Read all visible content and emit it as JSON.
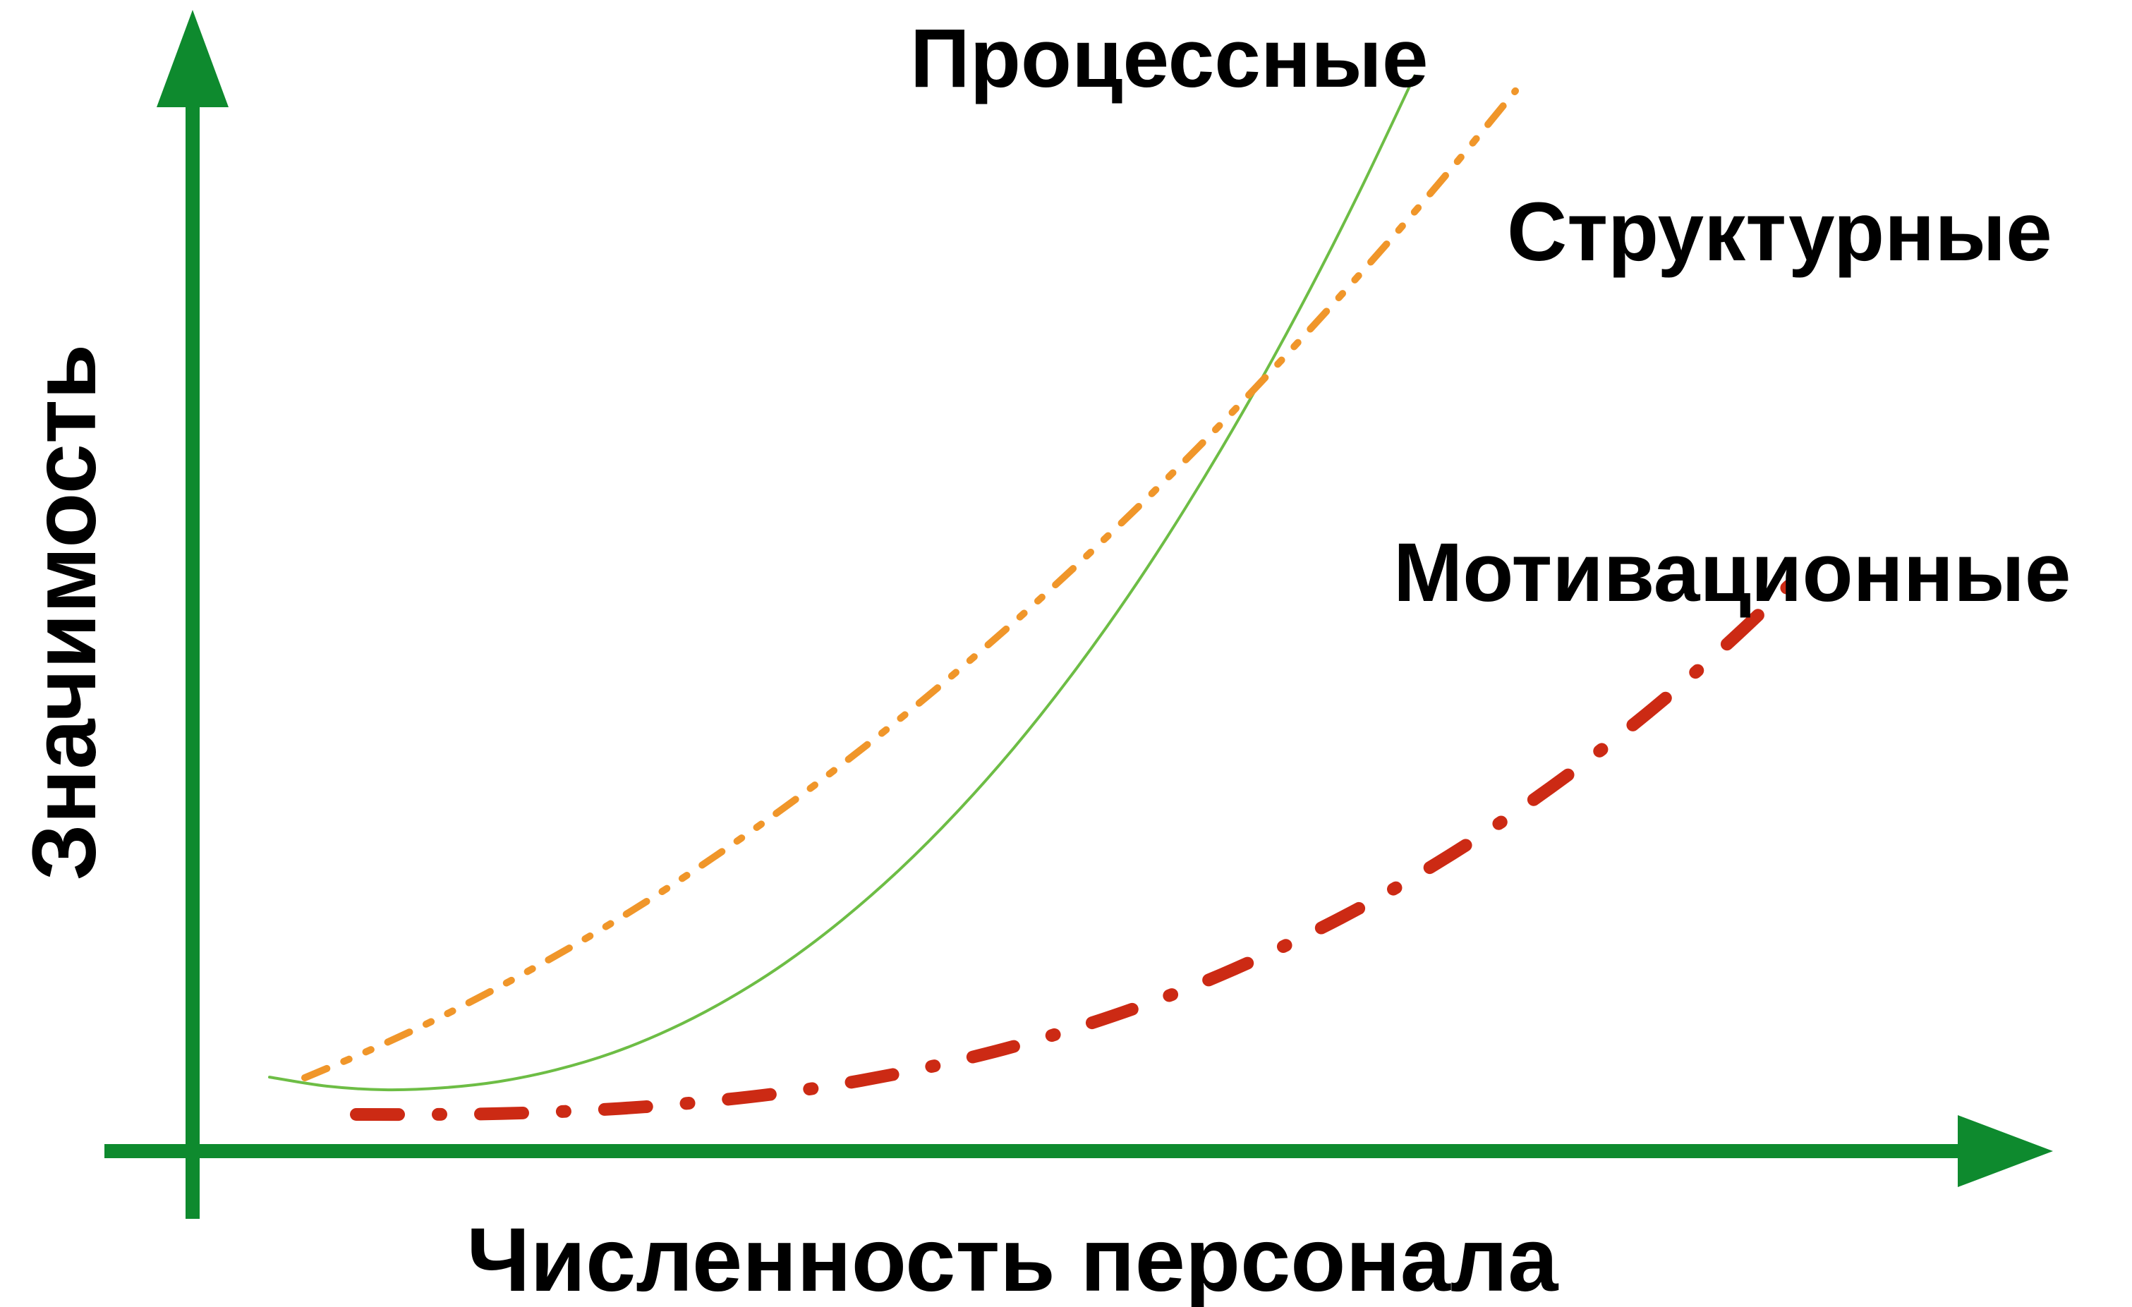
{
  "chart_data": {
    "type": "line",
    "xlabel": "Численность персонала",
    "ylabel": "Значимость",
    "grid": false,
    "axis_color": "#0e8a2e",
    "series": [
      {
        "name": "Процессные",
        "style": "solid",
        "color": "#6dbd45",
        "x": [
          0.0,
          0.05,
          0.1,
          0.15,
          0.2,
          0.25,
          0.3,
          0.35,
          0.4,
          0.45,
          0.5,
          0.55,
          0.6,
          0.65,
          0.7,
          0.75,
          0.8,
          0.85,
          0.9,
          0.95,
          1.0
        ],
        "y": [
          0.028,
          0.008,
          0.0,
          0.004,
          0.018,
          0.044,
          0.082,
          0.134,
          0.2,
          0.28,
          0.376,
          0.487,
          0.614,
          0.757,
          0.917,
          1.094,
          1.289,
          1.501,
          1.731,
          1.979,
          2.246
        ]
      },
      {
        "name": "Структурные",
        "style": "dash-dot-dot",
        "color": "#f0962a",
        "x": [
          0.0,
          0.05,
          0.1,
          0.15,
          0.2,
          0.25,
          0.3,
          0.35,
          0.4,
          0.45,
          0.5,
          0.55,
          0.6,
          0.65,
          0.7,
          0.75,
          0.8,
          0.85,
          0.9,
          0.95,
          1.0
        ],
        "y": [
          0.0,
          0.046,
          0.096,
          0.151,
          0.21,
          0.273,
          0.341,
          0.414,
          0.491,
          0.573,
          0.659,
          0.75,
          0.845,
          0.945,
          1.049,
          1.158,
          1.272,
          1.39,
          1.512,
          1.639,
          1.771
        ]
      },
      {
        "name": "Мотивационные",
        "style": "dash-dot",
        "color": "#cc2a14",
        "x": [
          0.0,
          0.05,
          0.1,
          0.15,
          0.2,
          0.25,
          0.3,
          0.35,
          0.4,
          0.45,
          0.5,
          0.55,
          0.6,
          0.65,
          0.7,
          0.75,
          0.8,
          0.85,
          0.9,
          0.95,
          1.0
        ],
        "y": [
          0.0,
          0.0,
          0.002,
          0.008,
          0.018,
          0.033,
          0.053,
          0.08,
          0.114,
          0.155,
          0.205,
          0.263,
          0.33,
          0.408,
          0.495,
          0.594,
          0.704,
          0.826,
          0.96,
          1.108,
          1.269
        ]
      }
    ]
  }
}
